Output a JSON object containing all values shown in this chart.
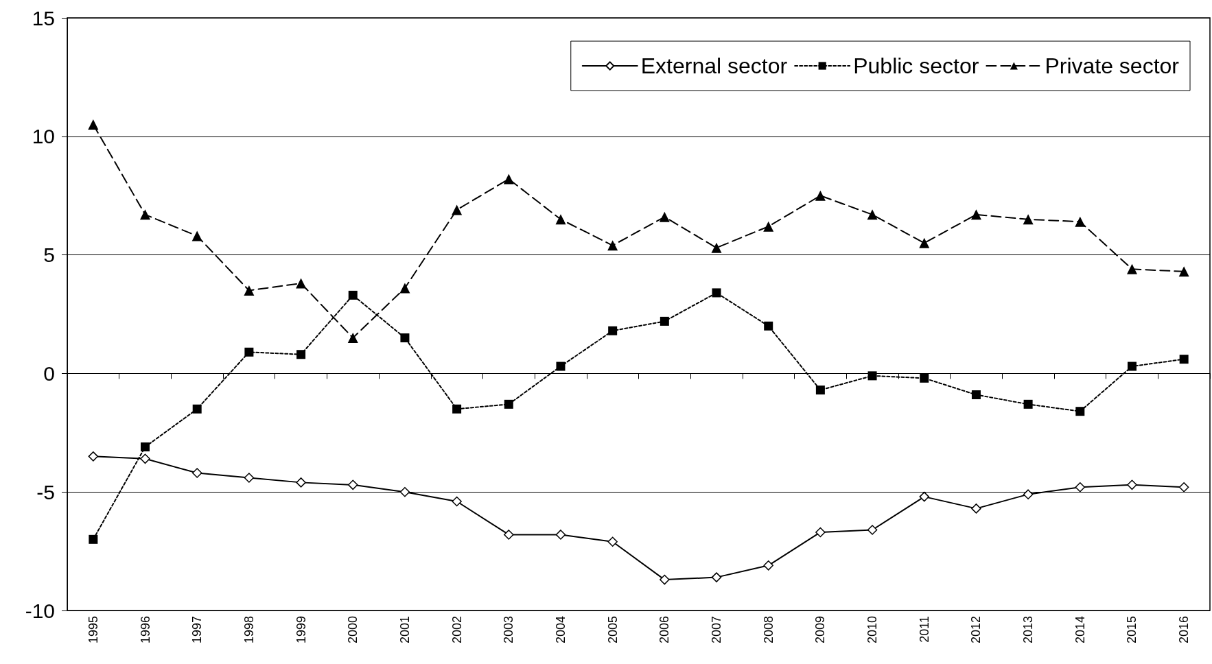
{
  "chart_data": {
    "type": "line",
    "categories": [
      "1995",
      "1996",
      "1997",
      "1998",
      "1999",
      "2000",
      "2001",
      "2002",
      "2003",
      "2004",
      "2005",
      "2006",
      "2007",
      "2008",
      "2009",
      "2010",
      "2011",
      "2012",
      "2013",
      "2014",
      "2015",
      "2016"
    ],
    "series": [
      {
        "name": "External sector",
        "color": "#000000",
        "marker": "diamond",
        "line_style": "solid",
        "values": [
          -3.5,
          -3.6,
          -4.2,
          -4.4,
          -4.6,
          -4.7,
          -5.0,
          -5.4,
          -6.8,
          -6.8,
          -7.1,
          -8.7,
          -8.6,
          -8.1,
          -6.7,
          -6.6,
          -5.2,
          -5.7,
          -5.1,
          -4.8,
          -4.7,
          -4.8
        ]
      },
      {
        "name": "Public sector",
        "color": "#000000",
        "marker": "square",
        "line_style": "dotted",
        "values": [
          -7.0,
          -3.1,
          -1.5,
          0.9,
          0.8,
          3.3,
          1.5,
          -1.5,
          -1.3,
          0.3,
          1.8,
          2.2,
          3.4,
          2.0,
          -0.7,
          -0.1,
          -0.2,
          -0.9,
          -1.3,
          -1.6,
          0.3,
          0.6
        ]
      },
      {
        "name": "Private sector",
        "color": "#000000",
        "marker": "triangle",
        "line_style": "dashed",
        "values": [
          10.5,
          6.7,
          5.8,
          3.5,
          3.8,
          1.5,
          3.6,
          6.9,
          8.2,
          6.5,
          5.4,
          6.6,
          5.3,
          6.2,
          7.5,
          6.7,
          5.5,
          6.7,
          6.5,
          6.4,
          4.4,
          4.3
        ]
      }
    ],
    "ylim": [
      -10,
      15
    ],
    "yticks": [
      -10,
      -5,
      0,
      5,
      10,
      15
    ],
    "grid": "y",
    "legend": "top right"
  }
}
